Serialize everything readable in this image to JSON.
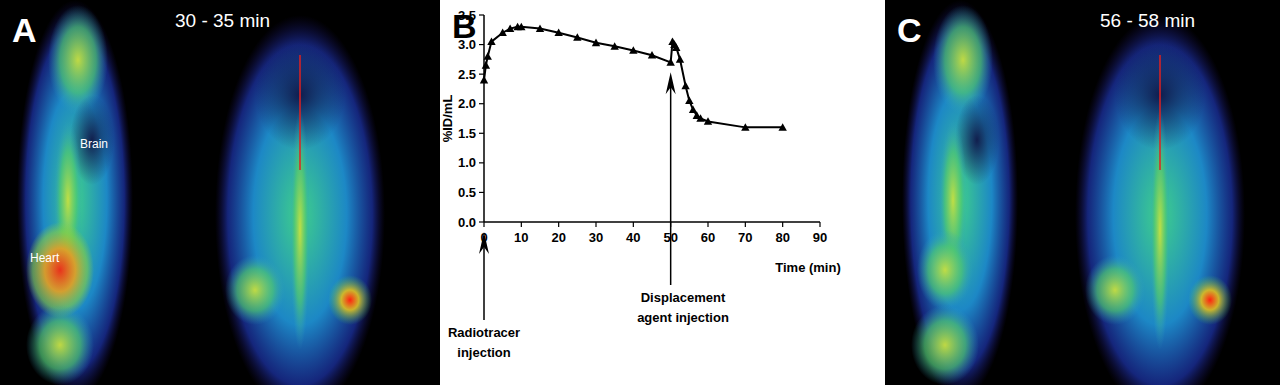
{
  "chart_data": {
    "type": "line",
    "panel_label": "B",
    "x_label": "Time (min)",
    "y_label": "%ID/mL",
    "x": [
      0,
      0.5,
      1,
      2,
      5,
      7,
      9,
      10,
      15,
      20,
      25,
      30,
      35,
      40,
      45,
      50,
      50.5,
      51,
      51.5,
      52.5,
      54,
      55,
      56,
      57,
      58,
      60,
      70,
      80
    ],
    "series": [
      {
        "name": "%ID/mL",
        "color": "#000000",
        "marker": "triangle",
        "line_style": "solid",
        "values": [
          2.4,
          2.65,
          2.8,
          3.05,
          3.2,
          3.27,
          3.3,
          3.3,
          3.27,
          3.2,
          3.12,
          3.03,
          2.97,
          2.9,
          2.82,
          2.7,
          3.05,
          3.0,
          2.95,
          2.75,
          2.3,
          2.05,
          1.9,
          1.8,
          1.75,
          1.7,
          1.6,
          1.6
        ]
      }
    ],
    "xlim": [
      0,
      90
    ],
    "xticks": [
      0,
      10,
      20,
      30,
      40,
      50,
      60,
      70,
      80,
      90
    ],
    "ylim": [
      0,
      3.5
    ],
    "yticks": [
      {
        "value": 0,
        "label": "0.0"
      },
      {
        "value": 0.5,
        "label": "0.5"
      },
      {
        "value": 1,
        "label": "1.0"
      },
      {
        "value": 1.5,
        "label": "1.5"
      },
      {
        "value": 2,
        "label": "2.0"
      },
      {
        "value": 2.5,
        "label": "2.5"
      },
      {
        "value": 3,
        "label": "3.0"
      },
      {
        "value": 3.5,
        "label": "3.5"
      }
    ],
    "grid": false,
    "annotations": [
      {
        "text": "Radiotracer injection",
        "x": 0,
        "y": 0
      },
      {
        "text": "Displacement agent injection",
        "x": 50,
        "y": 2.7
      }
    ]
  },
  "panels": [
    {
      "letter": "A",
      "time": "30 - 35 min",
      "labels": [
        "Brain",
        "Heart"
      ]
    },
    {
      "letter": "C",
      "time": "56 - 58 min"
    }
  ]
}
